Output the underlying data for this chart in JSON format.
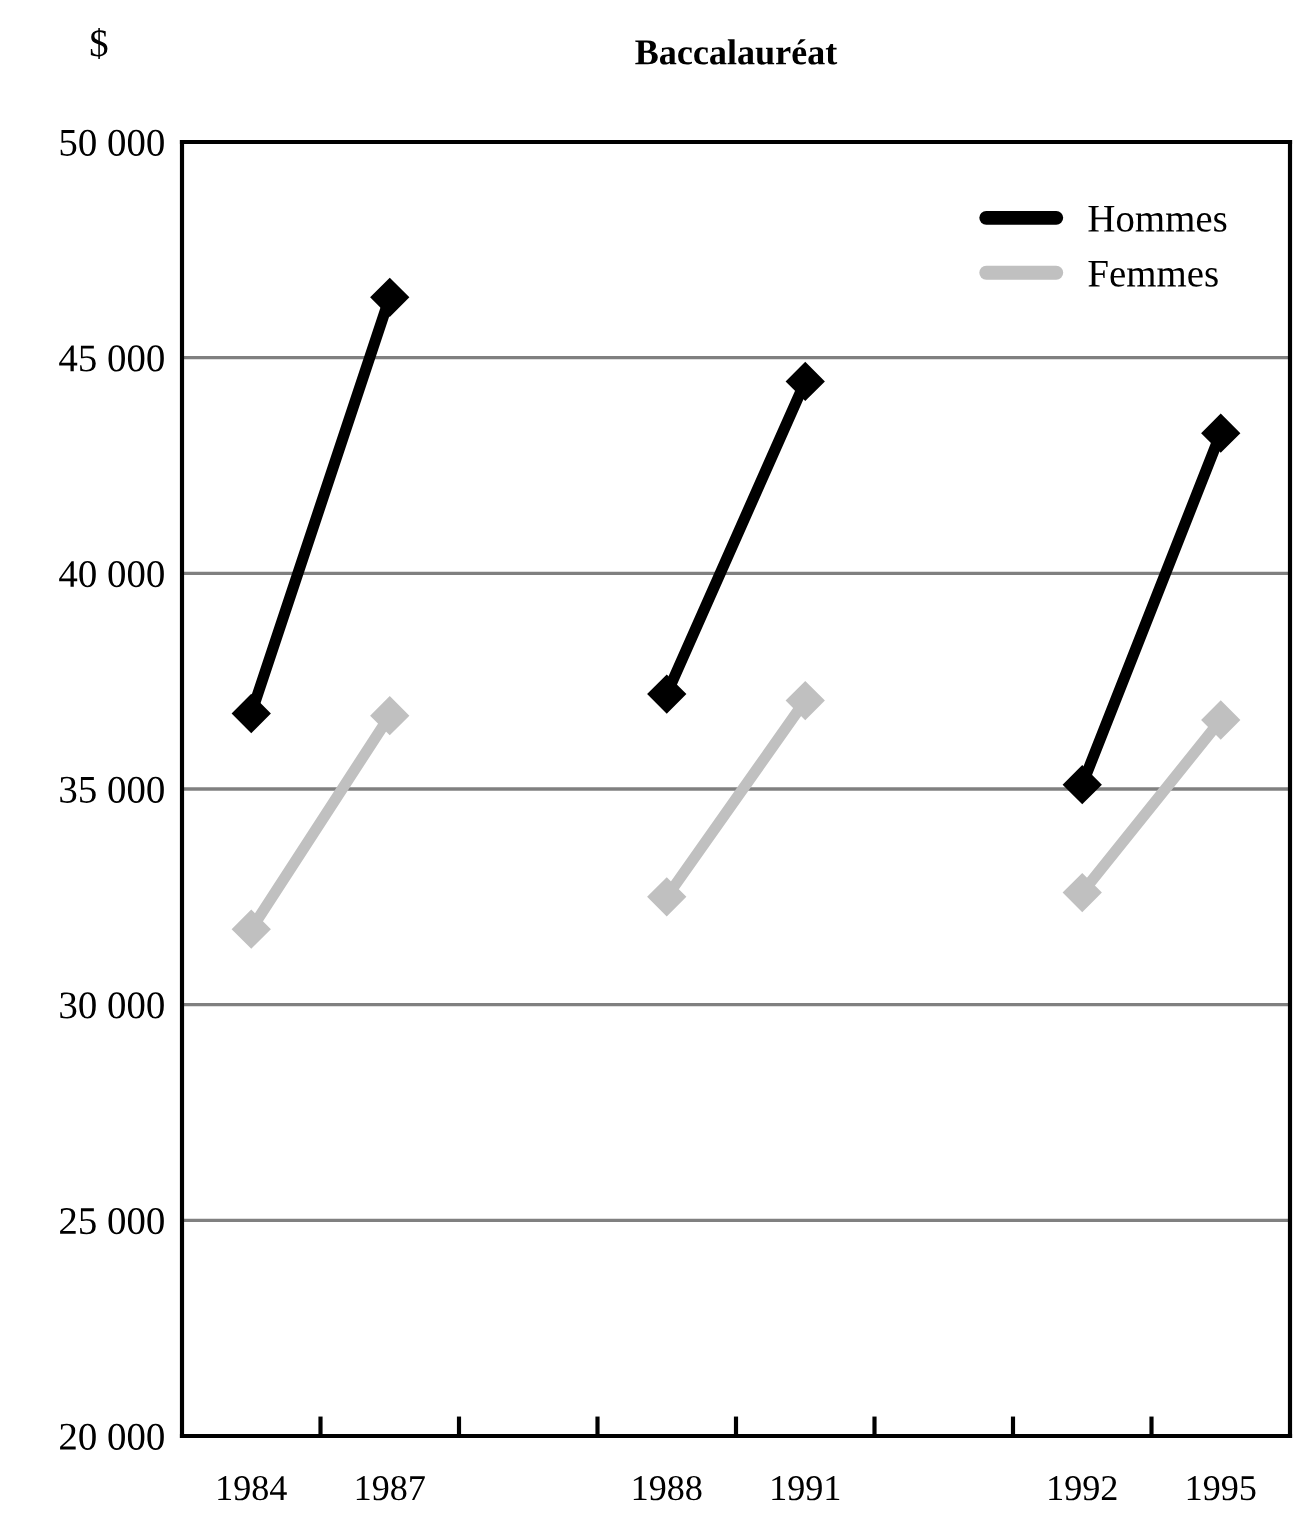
{
  "chart_data": {
    "type": "line",
    "title": "Baccalauréat",
    "ylabel": "$",
    "categories": [
      "1984",
      "1987",
      null,
      "1988",
      "1991",
      null,
      "1992",
      "1995"
    ],
    "series": [
      {
        "name": "Hommes",
        "color": "#000000",
        "values": [
          36750,
          46400,
          null,
          37200,
          44450,
          null,
          35100,
          43250
        ]
      },
      {
        "name": "Femmes",
        "color": "#c0c0c0",
        "values": [
          31750,
          36700,
          null,
          32500,
          37050,
          null,
          32600,
          36600
        ]
      }
    ],
    "ylim": [
      20000,
      50000
    ],
    "yticks": [
      {
        "value": 20000,
        "label": "20 000"
      },
      {
        "value": 25000,
        "label": "25 000"
      },
      {
        "value": 30000,
        "label": "30 000"
      },
      {
        "value": 35000,
        "label": "35 000"
      },
      {
        "value": 40000,
        "label": "40 000"
      },
      {
        "value": 45000,
        "label": "45 000"
      },
      {
        "value": 50000,
        "label": "50 000"
      }
    ],
    "grid": "y",
    "legend": "top right",
    "marker": "diamond",
    "line_style": "solid"
  }
}
